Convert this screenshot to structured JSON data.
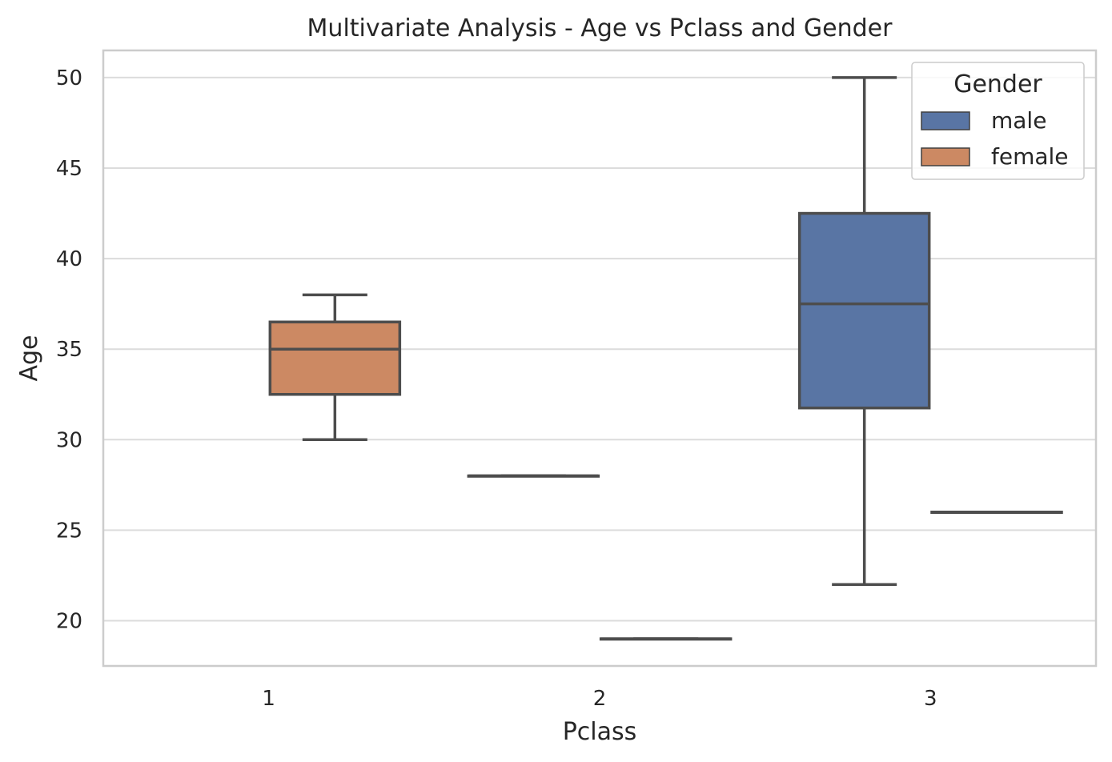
{
  "chart_data": {
    "type": "box",
    "title": "Multivariate Analysis - Age vs Pclass and Gender",
    "xlabel": "Pclass",
    "ylabel": "Age",
    "categories": [
      "1",
      "2",
      "3"
    ],
    "ylim": [
      17.5,
      51.5
    ],
    "yticks": [
      20,
      25,
      30,
      35,
      40,
      45,
      50
    ],
    "grid": true,
    "legend": {
      "title": "Gender",
      "position": "top-right",
      "entries": [
        {
          "name": "male",
          "color": "#5975a4"
        },
        {
          "name": "female",
          "color": "#cc8963"
        }
      ]
    },
    "series": [
      {
        "name": "male",
        "color": "#5975a4",
        "boxes": [
          {
            "category": "1",
            "min": null,
            "q1": null,
            "median": null,
            "q3": null,
            "max": null
          },
          {
            "category": "2",
            "min": 28,
            "q1": 28,
            "median": 28,
            "q3": 28,
            "max": 28
          },
          {
            "category": "3",
            "min": 22,
            "q1": 31.75,
            "median": 37.5,
            "q3": 42.5,
            "max": 50
          }
        ]
      },
      {
        "name": "female",
        "color": "#cc8963",
        "boxes": [
          {
            "category": "1",
            "min": 30,
            "q1": 32.5,
            "median": 35,
            "q3": 36.5,
            "max": 38
          },
          {
            "category": "2",
            "min": 19,
            "q1": 19,
            "median": 19,
            "q3": 19,
            "max": 19
          },
          {
            "category": "3",
            "min": 26,
            "q1": 26,
            "median": 26,
            "q3": 26,
            "max": 26
          }
        ]
      }
    ]
  }
}
